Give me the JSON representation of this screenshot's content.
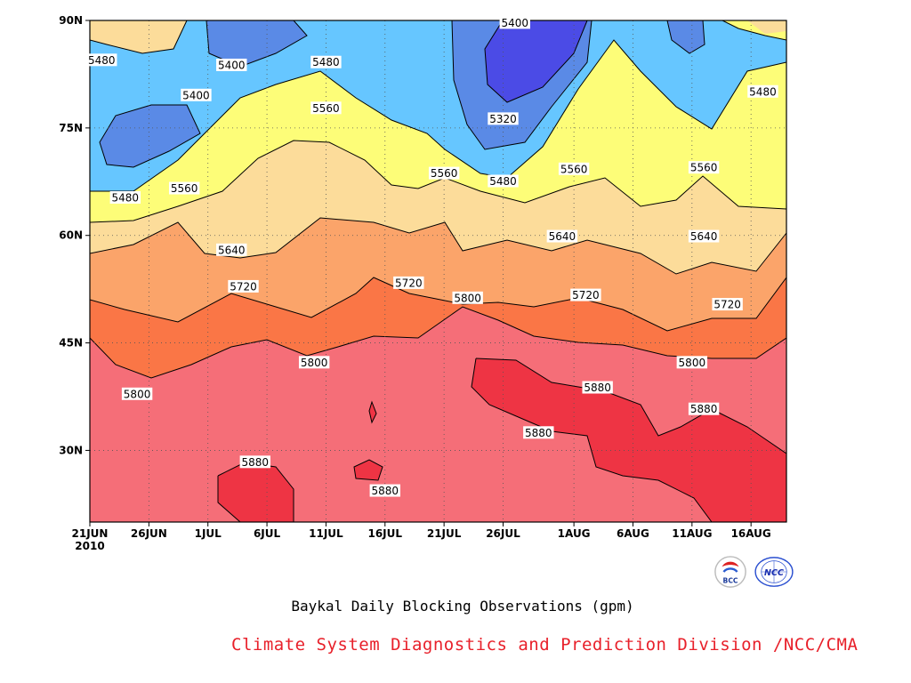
{
  "chart_data": {
    "type": "heatmap",
    "title": "Baykal Daily Blocking Observations (gpm)",
    "x_ticks": [
      "21JUN",
      "26JUN",
      "1JUL",
      "6JUL",
      "11JUL",
      "16JUL",
      "21JUL",
      "26JUL",
      "1AUG",
      "6AUG",
      "11AUG",
      "16AUG"
    ],
    "x_year_label": "2010",
    "x_range": [
      "2010-06-21",
      "2010-08-19"
    ],
    "y_ticks": [
      "30N",
      "45N",
      "60N",
      "75N",
      "90N"
    ],
    "y_range": [
      20,
      90
    ],
    "grid": true,
    "contour_levels": [
      5320,
      5400,
      5480,
      5560,
      5640,
      5720,
      5800,
      5880
    ],
    "level_colors": {
      "below_5320": "#4b4be6",
      "5320_5400": "#5a8ae6",
      "5400_5480": "#66c6ff",
      "5480_5560": "#fdfd78",
      "5560_5640": "#fcdc9a",
      "5640_5720": "#fba46a",
      "5720_5800": "#fa7646",
      "5800_5880": "#f56e78",
      "above_5880": "#ee3444"
    },
    "contour_labels": [
      {
        "value": "5400",
        "date": "2010-07-27",
        "lat": 89.7
      },
      {
        "value": "5480",
        "date": "2010-06-22",
        "lat": 84.5
      },
      {
        "value": "5400",
        "date": "2010-07-03",
        "lat": 83.8
      },
      {
        "value": "5480",
        "date": "2010-07-11",
        "lat": 84.2
      },
      {
        "value": "5400",
        "date": "2010-06-30",
        "lat": 79.6
      },
      {
        "value": "5560",
        "date": "2010-07-11",
        "lat": 77.8
      },
      {
        "value": "5320",
        "date": "2010-07-26",
        "lat": 76.3
      },
      {
        "value": "5480",
        "date": "2010-08-17",
        "lat": 80.1
      },
      {
        "value": "5560",
        "date": "2010-07-21",
        "lat": 68.7
      },
      {
        "value": "5480",
        "date": "2010-07-26",
        "lat": 67.6
      },
      {
        "value": "5560",
        "date": "2010-08-01",
        "lat": 69.3
      },
      {
        "value": "5560",
        "date": "2010-08-12",
        "lat": 69.5
      },
      {
        "value": "5560",
        "date": "2010-06-29",
        "lat": 66.6
      },
      {
        "value": "5480",
        "date": "2010-06-24",
        "lat": 65.3
      },
      {
        "value": "5640",
        "date": "2010-07-03",
        "lat": 58.0
      },
      {
        "value": "5640",
        "date": "2010-07-31",
        "lat": 59.9
      },
      {
        "value": "5640",
        "date": "2010-08-12",
        "lat": 59.9
      },
      {
        "value": "5720",
        "date": "2010-07-04",
        "lat": 52.9
      },
      {
        "value": "5720",
        "date": "2010-07-18",
        "lat": 53.4
      },
      {
        "value": "5720",
        "date": "2010-08-02",
        "lat": 51.7
      },
      {
        "value": "5720",
        "date": "2010-08-14",
        "lat": 50.4
      },
      {
        "value": "5800",
        "date": "2010-07-23",
        "lat": 51.3
      },
      {
        "value": "5800",
        "date": "2010-07-10",
        "lat": 42.3
      },
      {
        "value": "5800",
        "date": "2010-08-11",
        "lat": 42.3
      },
      {
        "value": "5800",
        "date": "2010-06-25",
        "lat": 37.9
      },
      {
        "value": "5880",
        "date": "2010-08-03",
        "lat": 38.8
      },
      {
        "value": "5880",
        "date": "2010-08-12",
        "lat": 35.8
      },
      {
        "value": "5880",
        "date": "2010-07-29",
        "lat": 32.5
      },
      {
        "value": "5880",
        "date": "2010-07-05",
        "lat": 28.4
      },
      {
        "value": "5880",
        "date": "2010-07-16",
        "lat": 24.4
      }
    ]
  },
  "footer": {
    "title": "Baykal Daily Blocking Observations (gpm)",
    "credit": "Climate System Diagnostics and Prediction Division /NCC/CMA",
    "logo_left_text": "BCC",
    "logo_right_text": "NCC"
  }
}
